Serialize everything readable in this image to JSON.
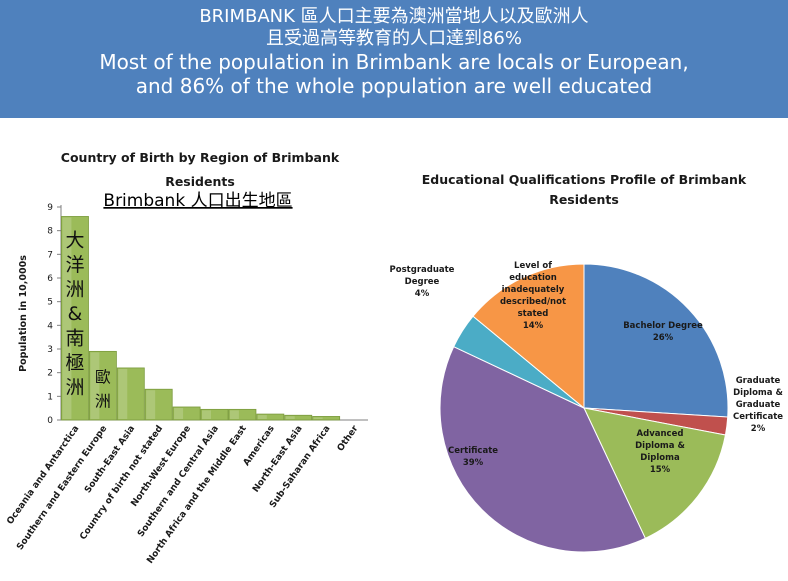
{
  "header": {
    "line1": "BRIMBANK 區人口主要為澳洲當地人以及歐洲人",
    "line2": "且受過高等教育的人口達到86%",
    "line3": "Most of the population in Brimbank are locals or European,",
    "line4": "and 86% of the whole population are well educated"
  },
  "chart_data": [
    {
      "type": "bar",
      "title_line1": "Country of Birth by Region of Brimbank",
      "title_line2": "Residents",
      "subtitle": "Brimbank 人口出生地區",
      "ylabel": "Population in 10,000s",
      "ylim": [
        0,
        9
      ],
      "yticks": [
        "0",
        "1",
        "2",
        "3",
        "4",
        "5",
        "6",
        "7",
        "8",
        "9"
      ],
      "categories": [
        "Oceania and Antarctica",
        "Southern and Eastern Europe",
        "South-East Asia",
        "Country of birth not stated",
        "North-West Europe",
        "Southern and Central Asia",
        "North Africa and the Middle East",
        "Americas",
        "North-East Asia",
        "Sub-Saharan Africa",
        "Other"
      ],
      "values": [
        8.6,
        2.9,
        2.2,
        1.3,
        0.55,
        0.45,
        0.45,
        0.25,
        0.2,
        0.15,
        0
      ],
      "bar_color": "#9bbb59",
      "annotations": [
        {
          "category_index": 0,
          "chars": [
            "大",
            "洋",
            "洲",
            "&",
            "南",
            "極",
            "洲"
          ]
        },
        {
          "category_index": 1,
          "chars": [
            "歐",
            "洲"
          ]
        }
      ]
    },
    {
      "type": "pie",
      "title_line1": "Educational Qualifications Profile of Brimbank",
      "title_line2": "Residents",
      "slices": [
        {
          "label_lines": [
            "Bachelor Degree"
          ],
          "value": 26,
          "value_label": "26%",
          "color": "#4f81bd"
        },
        {
          "label_lines": [
            "Graduate",
            "Diploma &",
            "Graduate",
            "Certificate"
          ],
          "value": 2,
          "value_label": "2%",
          "color": "#c0504d"
        },
        {
          "label_lines": [
            "Advanced",
            "Diploma &",
            "Diploma"
          ],
          "value": 15,
          "value_label": "15%",
          "color": "#9bbb59"
        },
        {
          "label_lines": [
            "Certificate"
          ],
          "value": 39,
          "value_label": "39%",
          "color": "#8064a2"
        },
        {
          "label_lines": [
            "Postgraduate",
            "Degree"
          ],
          "value": 4,
          "value_label": "4%",
          "color": "#4bacc6"
        },
        {
          "label_lines": [
            "Level of",
            "education",
            "inadequately",
            "described/not",
            "stated"
          ],
          "value": 14,
          "value_label": "14%",
          "color": "#f79646"
        }
      ]
    }
  ]
}
